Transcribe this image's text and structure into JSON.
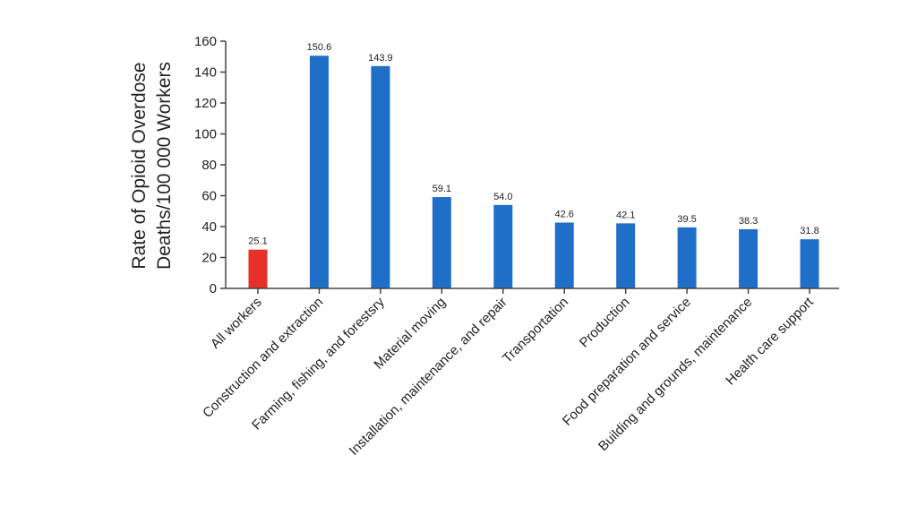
{
  "chart_data": {
    "type": "bar",
    "title": "",
    "xlabel": "",
    "ylabel": [
      "Rate of Opioid Overdose",
      "Deaths/100 000 Workers"
    ],
    "ylim": [
      0,
      160
    ],
    "yticks": [
      0,
      20,
      40,
      60,
      80,
      100,
      120,
      140,
      160
    ],
    "grid": false,
    "categories": [
      "All workers",
      "Construction and extraction",
      "Farming, fishing, and forestsry",
      "Material moving",
      "Installation, maintenance, and repair",
      "Transportation",
      "Production",
      "Food preparation and service",
      "Building and grounds, maintenance",
      "Health care support"
    ],
    "values": [
      25.1,
      150.6,
      143.9,
      59.1,
      54.0,
      42.6,
      42.1,
      39.5,
      38.3,
      31.8
    ],
    "value_labels": [
      "25.1",
      "150.6",
      "143.9",
      "59.1",
      "54.0",
      "42.6",
      "42.1",
      "39.5",
      "38.3",
      "31.8"
    ],
    "colors": [
      "#e8302a",
      "#1f6fc8",
      "#1f6fc8",
      "#1f6fc8",
      "#1f6fc8",
      "#1f6fc8",
      "#1f6fc8",
      "#1f6fc8",
      "#1f6fc8",
      "#1f6fc8"
    ]
  }
}
